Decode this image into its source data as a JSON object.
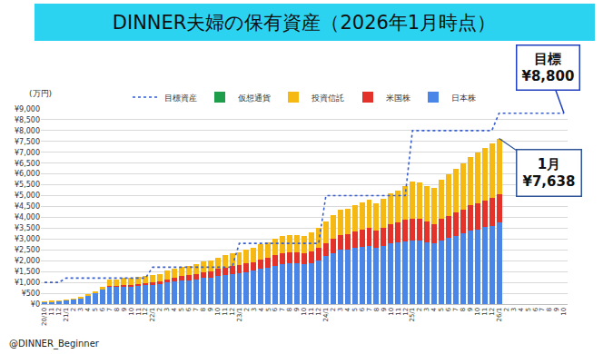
{
  "chart_data": {
    "type": "bar",
    "stacked": true,
    "title": "DINNER夫婦の保有資産（2026年1月時点）",
    "y_label": "(万円)",
    "footer": "@DINNER_Beginner",
    "grid": true,
    "legend": "top",
    "categories": [
      "20/10",
      "11",
      "12",
      "21/1",
      "2",
      "3",
      "4",
      "5",
      "6",
      "7",
      "8",
      "9",
      "10",
      "11",
      "12",
      "22/1",
      "2",
      "3",
      "4",
      "5",
      "6",
      "7",
      "8",
      "9",
      "10",
      "11",
      "12",
      "23/1",
      "2",
      "3",
      "4",
      "5",
      "6",
      "7",
      "8",
      "9",
      "10",
      "11",
      "12",
      "24/1",
      "2",
      "3",
      "4",
      "5",
      "6",
      "7",
      "8",
      "9",
      "10",
      "11",
      "12",
      "25/1",
      "2",
      "3",
      "4",
      "5",
      "6",
      "7",
      "8",
      "9",
      "10",
      "11",
      "12",
      "26/1",
      "2",
      "3",
      "4",
      "5",
      "6",
      "7",
      "8",
      "9",
      "10"
    ],
    "series": [
      {
        "name": "日本株",
        "color": "#4a86e8",
        "values": [
          90,
          110,
          130,
          170,
          210,
          290,
          380,
          500,
          650,
          800,
          800,
          830,
          830,
          860,
          880,
          900,
          930,
          1000,
          1050,
          1080,
          1100,
          1150,
          1200,
          1230,
          1300,
          1350,
          1400,
          1430,
          1480,
          1530,
          1620,
          1680,
          1760,
          1840,
          1870,
          1870,
          1830,
          1900,
          2000,
          2200,
          2350,
          2500,
          2500,
          2580,
          2650,
          2700,
          2600,
          2700,
          2800,
          2850,
          2900,
          2950,
          2950,
          2850,
          2800,
          2950,
          3050,
          3150,
          3250,
          3400,
          3450,
          3550,
          3620,
          3750,
          null,
          null,
          null,
          null,
          null,
          null,
          null,
          null,
          null
        ]
      },
      {
        "name": "米国株",
        "color": "#e2322a",
        "values": [
          0,
          0,
          0,
          0,
          0,
          0,
          0,
          0,
          0,
          50,
          50,
          60,
          60,
          70,
          80,
          100,
          110,
          150,
          180,
          200,
          220,
          250,
          270,
          280,
          320,
          340,
          360,
          370,
          390,
          410,
          430,
          450,
          480,
          510,
          520,
          520,
          510,
          540,
          580,
          600,
          650,
          700,
          720,
          750,
          780,
          800,
          780,
          820,
          870,
          920,
          980,
          1000,
          980,
          950,
          900,
          980,
          1030,
          1080,
          1120,
          1170,
          1200,
          1230,
          1270,
          1300,
          null,
          null,
          null,
          null,
          null,
          null,
          null,
          null,
          null
        ]
      },
      {
        "name": "投資信託",
        "color": "#f6b913",
        "values": [
          10,
          20,
          20,
          30,
          40,
          60,
          70,
          100,
          150,
          300,
          300,
          310,
          310,
          320,
          340,
          350,
          360,
          400,
          420,
          420,
          430,
          450,
          480,
          490,
          530,
          560,
          590,
          600,
          630,
          660,
          700,
          720,
          760,
          800,
          810,
          810,
          810,
          860,
          920,
          1000,
          1100,
          1150,
          1180,
          1220,
          1270,
          1300,
          1270,
          1330,
          1430,
          1480,
          1570,
          1700,
          1670,
          1650,
          1650,
          1820,
          1920,
          2020,
          2130,
          2230,
          2350,
          2420,
          2510,
          2588,
          null,
          null,
          null,
          null,
          null,
          null,
          null,
          null,
          null
        ]
      },
      {
        "name": "仮想通貨",
        "color": "#1e9e4a",
        "values": [
          0,
          0,
          0,
          0,
          0,
          0,
          0,
          0,
          0,
          0,
          0,
          0,
          0,
          0,
          0,
          0,
          0,
          0,
          0,
          0,
          0,
          0,
          0,
          0,
          0,
          0,
          0,
          0,
          0,
          0,
          0,
          0,
          0,
          0,
          0,
          0,
          0,
          0,
          0,
          0,
          0,
          0,
          0,
          0,
          0,
          0,
          0,
          0,
          0,
          0,
          0,
          0,
          0,
          0,
          0,
          0,
          0,
          0,
          0,
          0,
          0,
          0,
          0,
          0,
          null,
          null,
          null,
          null,
          null,
          null,
          null,
          null,
          null
        ]
      },
      {
        "name": "目標資産",
        "type": "line",
        "line_style": "dotted",
        "color": "#3a5fcd",
        "values": [
          1000,
          1000,
          1000,
          1200,
          1200,
          1200,
          1200,
          1200,
          1200,
          1200,
          1200,
          1200,
          1200,
          1200,
          1200,
          1700,
          1700,
          1700,
          1700,
          1700,
          1700,
          1700,
          1700,
          1700,
          1700,
          1700,
          1700,
          2800,
          2800,
          2800,
          2800,
          2800,
          2800,
          2800,
          2800,
          2800,
          2800,
          2800,
          2800,
          5000,
          5000,
          5000,
          5000,
          5000,
          5000,
          5000,
          5000,
          5000,
          5000,
          5000,
          5000,
          8000,
          8000,
          8000,
          8000,
          8000,
          8000,
          8000,
          8000,
          8000,
          8000,
          8000,
          8000,
          8800,
          8800,
          8800,
          8800,
          8800,
          8800,
          8800,
          8800,
          8800,
          8800
        ]
      }
    ],
    "ylim": [
      0,
      9000
    ],
    "yticks": [
      {
        "value": 0,
        "label": "¥0"
      },
      {
        "value": 500,
        "label": "¥500"
      },
      {
        "value": 1000,
        "label": "¥1,000"
      },
      {
        "value": 1500,
        "label": "¥1,500"
      },
      {
        "value": 2000,
        "label": "¥2,000"
      },
      {
        "value": 2500,
        "label": "¥2,500"
      },
      {
        "value": 3000,
        "label": "¥3,000"
      },
      {
        "value": 3500,
        "label": "¥3,500"
      },
      {
        "value": 4000,
        "label": "¥4,000"
      },
      {
        "value": 4500,
        "label": "¥4,500"
      },
      {
        "value": 5000,
        "label": "¥5,000"
      },
      {
        "value": 5500,
        "label": "¥5,500"
      },
      {
        "value": 6000,
        "label": "¥6,000"
      },
      {
        "value": 6500,
        "label": "¥6,500"
      },
      {
        "value": 7000,
        "label": "¥7,000"
      },
      {
        "value": 7500,
        "label": "¥7,500"
      },
      {
        "value": 8000,
        "label": "¥8,000"
      },
      {
        "value": 8500,
        "label": "¥8,500"
      },
      {
        "value": 9000,
        "label": "¥9,000"
      }
    ],
    "annotations": [
      {
        "lines": [
          "目標",
          "¥8,800"
        ],
        "series": "目標資産"
      },
      {
        "lines": [
          "1月",
          "¥7,638"
        ],
        "at": "26/1"
      }
    ]
  }
}
